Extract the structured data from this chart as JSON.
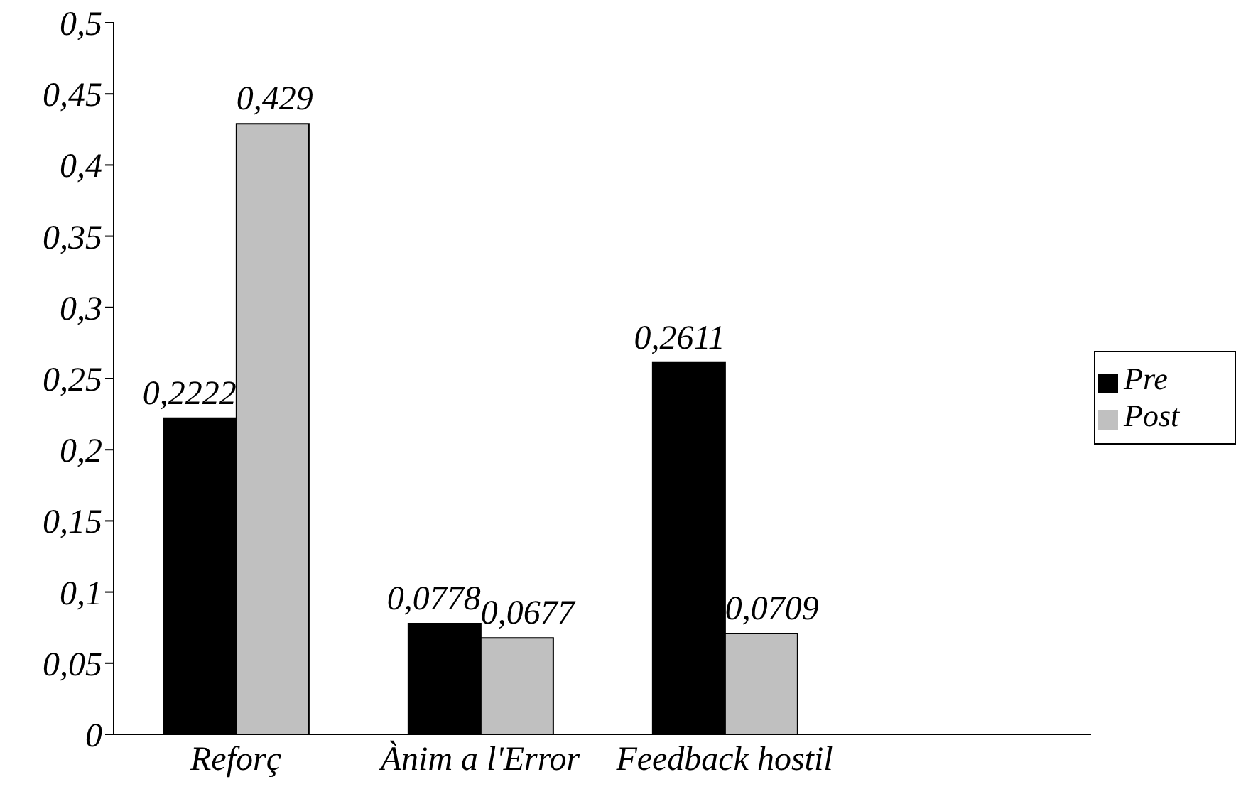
{
  "chart_data": {
    "type": "bar",
    "categories": [
      "Reforç",
      "Ànim a l'Error",
      "Feedback hostil",
      null
    ],
    "series": [
      {
        "name": "Pre",
        "color": "#000000",
        "values": [
          0.2222,
          0.0778,
          0.2611,
          null
        ],
        "value_labels": [
          "0,2222",
          "0,0778",
          "0,2611",
          null
        ]
      },
      {
        "name": "Post",
        "color": "#c0c0c0",
        "values": [
          0.429,
          0.0677,
          0.0709,
          null
        ],
        "value_labels": [
          "0,429",
          "0,0677",
          "0,0709",
          null
        ]
      }
    ],
    "ylim": [
      0,
      0.5
    ],
    "yticks": [
      0,
      {
        "value": 0.05,
        "label": "0,05"
      },
      {
        "value": 0.1,
        "label": "0,1"
      },
      {
        "value": 0.15,
        "label": "0,15"
      },
      {
        "value": 0.2,
        "label": "0,2"
      },
      {
        "value": 0.25,
        "label": "0,25"
      },
      {
        "value": 0.3,
        "label": "0,3"
      },
      {
        "value": 0.35,
        "label": "0,35"
      },
      {
        "value": 0.4,
        "label": "0,4"
      },
      {
        "value": 0.45,
        "label": "0,45"
      },
      {
        "value": 0.5,
        "label": "0,5"
      }
    ],
    "grid": false,
    "legend": "right"
  }
}
